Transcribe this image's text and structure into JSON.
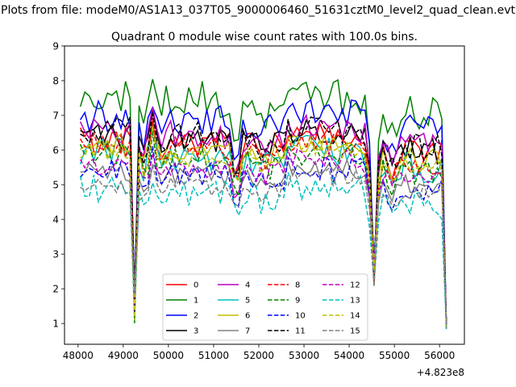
{
  "chart_data": {
    "type": "line",
    "suptitle": "Plots from file: modeM0/AS1A13_037T05_9000006460_51631cztM0_level2_quad_clean.evt",
    "title": "Quadrant 0 module wise count rates with 100.0s bins.",
    "xlabel": "",
    "ylabel": "",
    "x_offset_label": "+4.823e8",
    "xlim": [
      47700,
      56550
    ],
    "ylim": [
      0.4,
      9
    ],
    "xticks": [
      48000,
      49000,
      50000,
      51000,
      52000,
      53000,
      54000,
      55000,
      56000
    ],
    "yticks": [
      1,
      2,
      3,
      4,
      5,
      6,
      7,
      8,
      9
    ],
    "x": {
      "start": 48050,
      "step": 100,
      "count": 82
    },
    "legend_position": "lower center",
    "series": [
      {
        "name": "0",
        "color": "#ff0000",
        "dash": "solid",
        "gen": [
          6.3,
          5.95,
          0.8,
          11
        ]
      },
      {
        "name": "1",
        "color": "#008000",
        "dash": "solid",
        "gen": [
          7.65,
          7.05,
          1.1,
          12
        ]
      },
      {
        "name": "2",
        "color": "#0000ff",
        "dash": "solid",
        "gen": [
          7.0,
          6.55,
          0.9,
          13
        ]
      },
      {
        "name": "3",
        "color": "#000000",
        "dash": "solid",
        "gen": [
          6.5,
          5.95,
          0.75,
          14
        ]
      },
      {
        "name": "4",
        "color": "#bf00bf",
        "dash": "solid",
        "gen": [
          6.6,
          6.1,
          0.75,
          15
        ]
      },
      {
        "name": "5",
        "color": "#00bfbf",
        "dash": "solid",
        "gen": [
          6.0,
          5.45,
          0.85,
          16
        ]
      },
      {
        "name": "6",
        "color": "#bfbf00",
        "dash": "solid",
        "gen": [
          6.2,
          5.65,
          0.7,
          17
        ]
      },
      {
        "name": "7",
        "color": "#808080",
        "dash": "solid",
        "gen": [
          5.4,
          5.0,
          0.55,
          18
        ]
      },
      {
        "name": "8",
        "color": "#ff0000",
        "dash": "dashed",
        "gen": [
          6.2,
          5.6,
          0.7,
          19
        ]
      },
      {
        "name": "9",
        "color": "#008000",
        "dash": "dashed",
        "gen": [
          5.9,
          5.3,
          0.7,
          20
        ]
      },
      {
        "name": "10",
        "color": "#0000ff",
        "dash": "dashed",
        "gen": [
          5.5,
          4.9,
          0.75,
          21
        ]
      },
      {
        "name": "11",
        "color": "#000000",
        "dash": "dashed",
        "gen": [
          6.6,
          6.05,
          0.85,
          22
        ]
      },
      {
        "name": "12",
        "color": "#bf00bf",
        "dash": "dashed",
        "gen": [
          5.6,
          5.3,
          0.6,
          23
        ]
      },
      {
        "name": "13",
        "color": "#00bfbf",
        "dash": "dashed",
        "gen": [
          4.9,
          4.4,
          0.8,
          24
        ]
      },
      {
        "name": "14",
        "color": "#bfbf00",
        "dash": "dashed",
        "gen": [
          6.0,
          5.5,
          0.65,
          25
        ]
      },
      {
        "name": "15",
        "color": "#808080",
        "dash": "dashed",
        "gen": [
          5.0,
          4.8,
          0.55,
          26
        ]
      }
    ]
  }
}
